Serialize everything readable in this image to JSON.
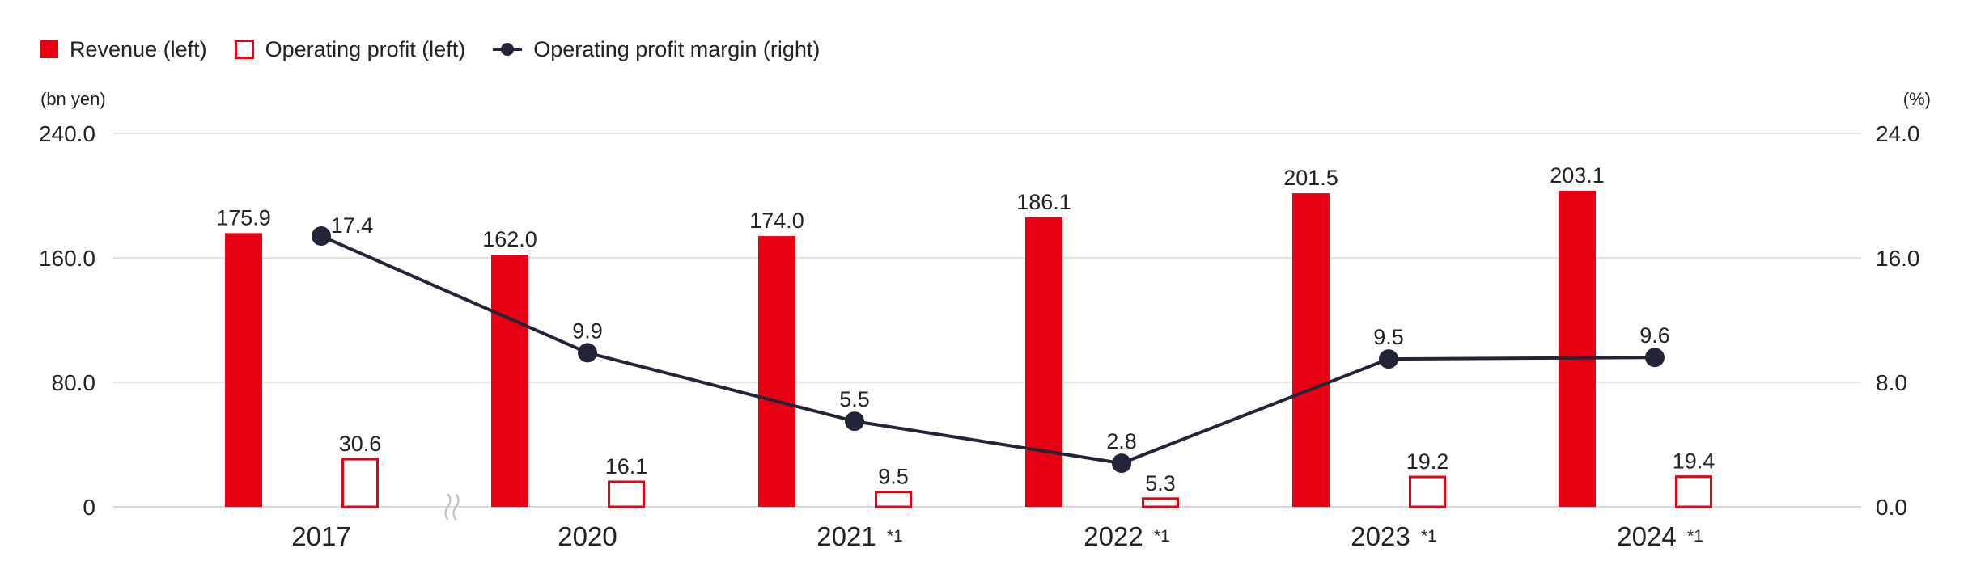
{
  "legend": {
    "revenue": "Revenue (left)",
    "profit": "Operating profit (left)",
    "margin": "Operating profit margin (right)"
  },
  "axes": {
    "left_unit": "(bn yen)",
    "right_unit": "(%)"
  },
  "colors": {
    "revenue": "#e60012",
    "profit": "#e60012",
    "margin": "#23233a",
    "grid": "#d9d9d9"
  },
  "chart_data": {
    "type": "bar",
    "categories": [
      "2017",
      "2020",
      "2021",
      "2022",
      "2023",
      "2024"
    ],
    "category_notes": [
      "",
      "",
      "*1",
      "*1",
      "*1",
      "*1"
    ],
    "axis_break_after_index": 0,
    "series": [
      {
        "name": "Revenue (left)",
        "type": "bar",
        "axis": "left",
        "style": "filled",
        "values": [
          175.9,
          162.0,
          174.0,
          186.1,
          201.5,
          203.1
        ]
      },
      {
        "name": "Operating profit (left)",
        "type": "bar",
        "axis": "left",
        "style": "outline",
        "values": [
          30.6,
          16.1,
          9.5,
          5.3,
          19.2,
          19.4
        ]
      },
      {
        "name": "Operating profit margin (right)",
        "type": "line",
        "axis": "right",
        "values": [
          17.4,
          9.9,
          5.5,
          2.8,
          9.5,
          9.6
        ]
      }
    ],
    "y_left": {
      "label": "(bn yen)",
      "range": [
        0,
        240
      ],
      "ticks": [
        "0",
        "80.0",
        "160.0",
        "240.0"
      ]
    },
    "y_right": {
      "label": "(%)",
      "range": [
        0,
        24
      ],
      "ticks": [
        "0.0",
        "8.0",
        "16.0",
        "24.0"
      ]
    },
    "grid": true,
    "legend_position": "top-left"
  }
}
